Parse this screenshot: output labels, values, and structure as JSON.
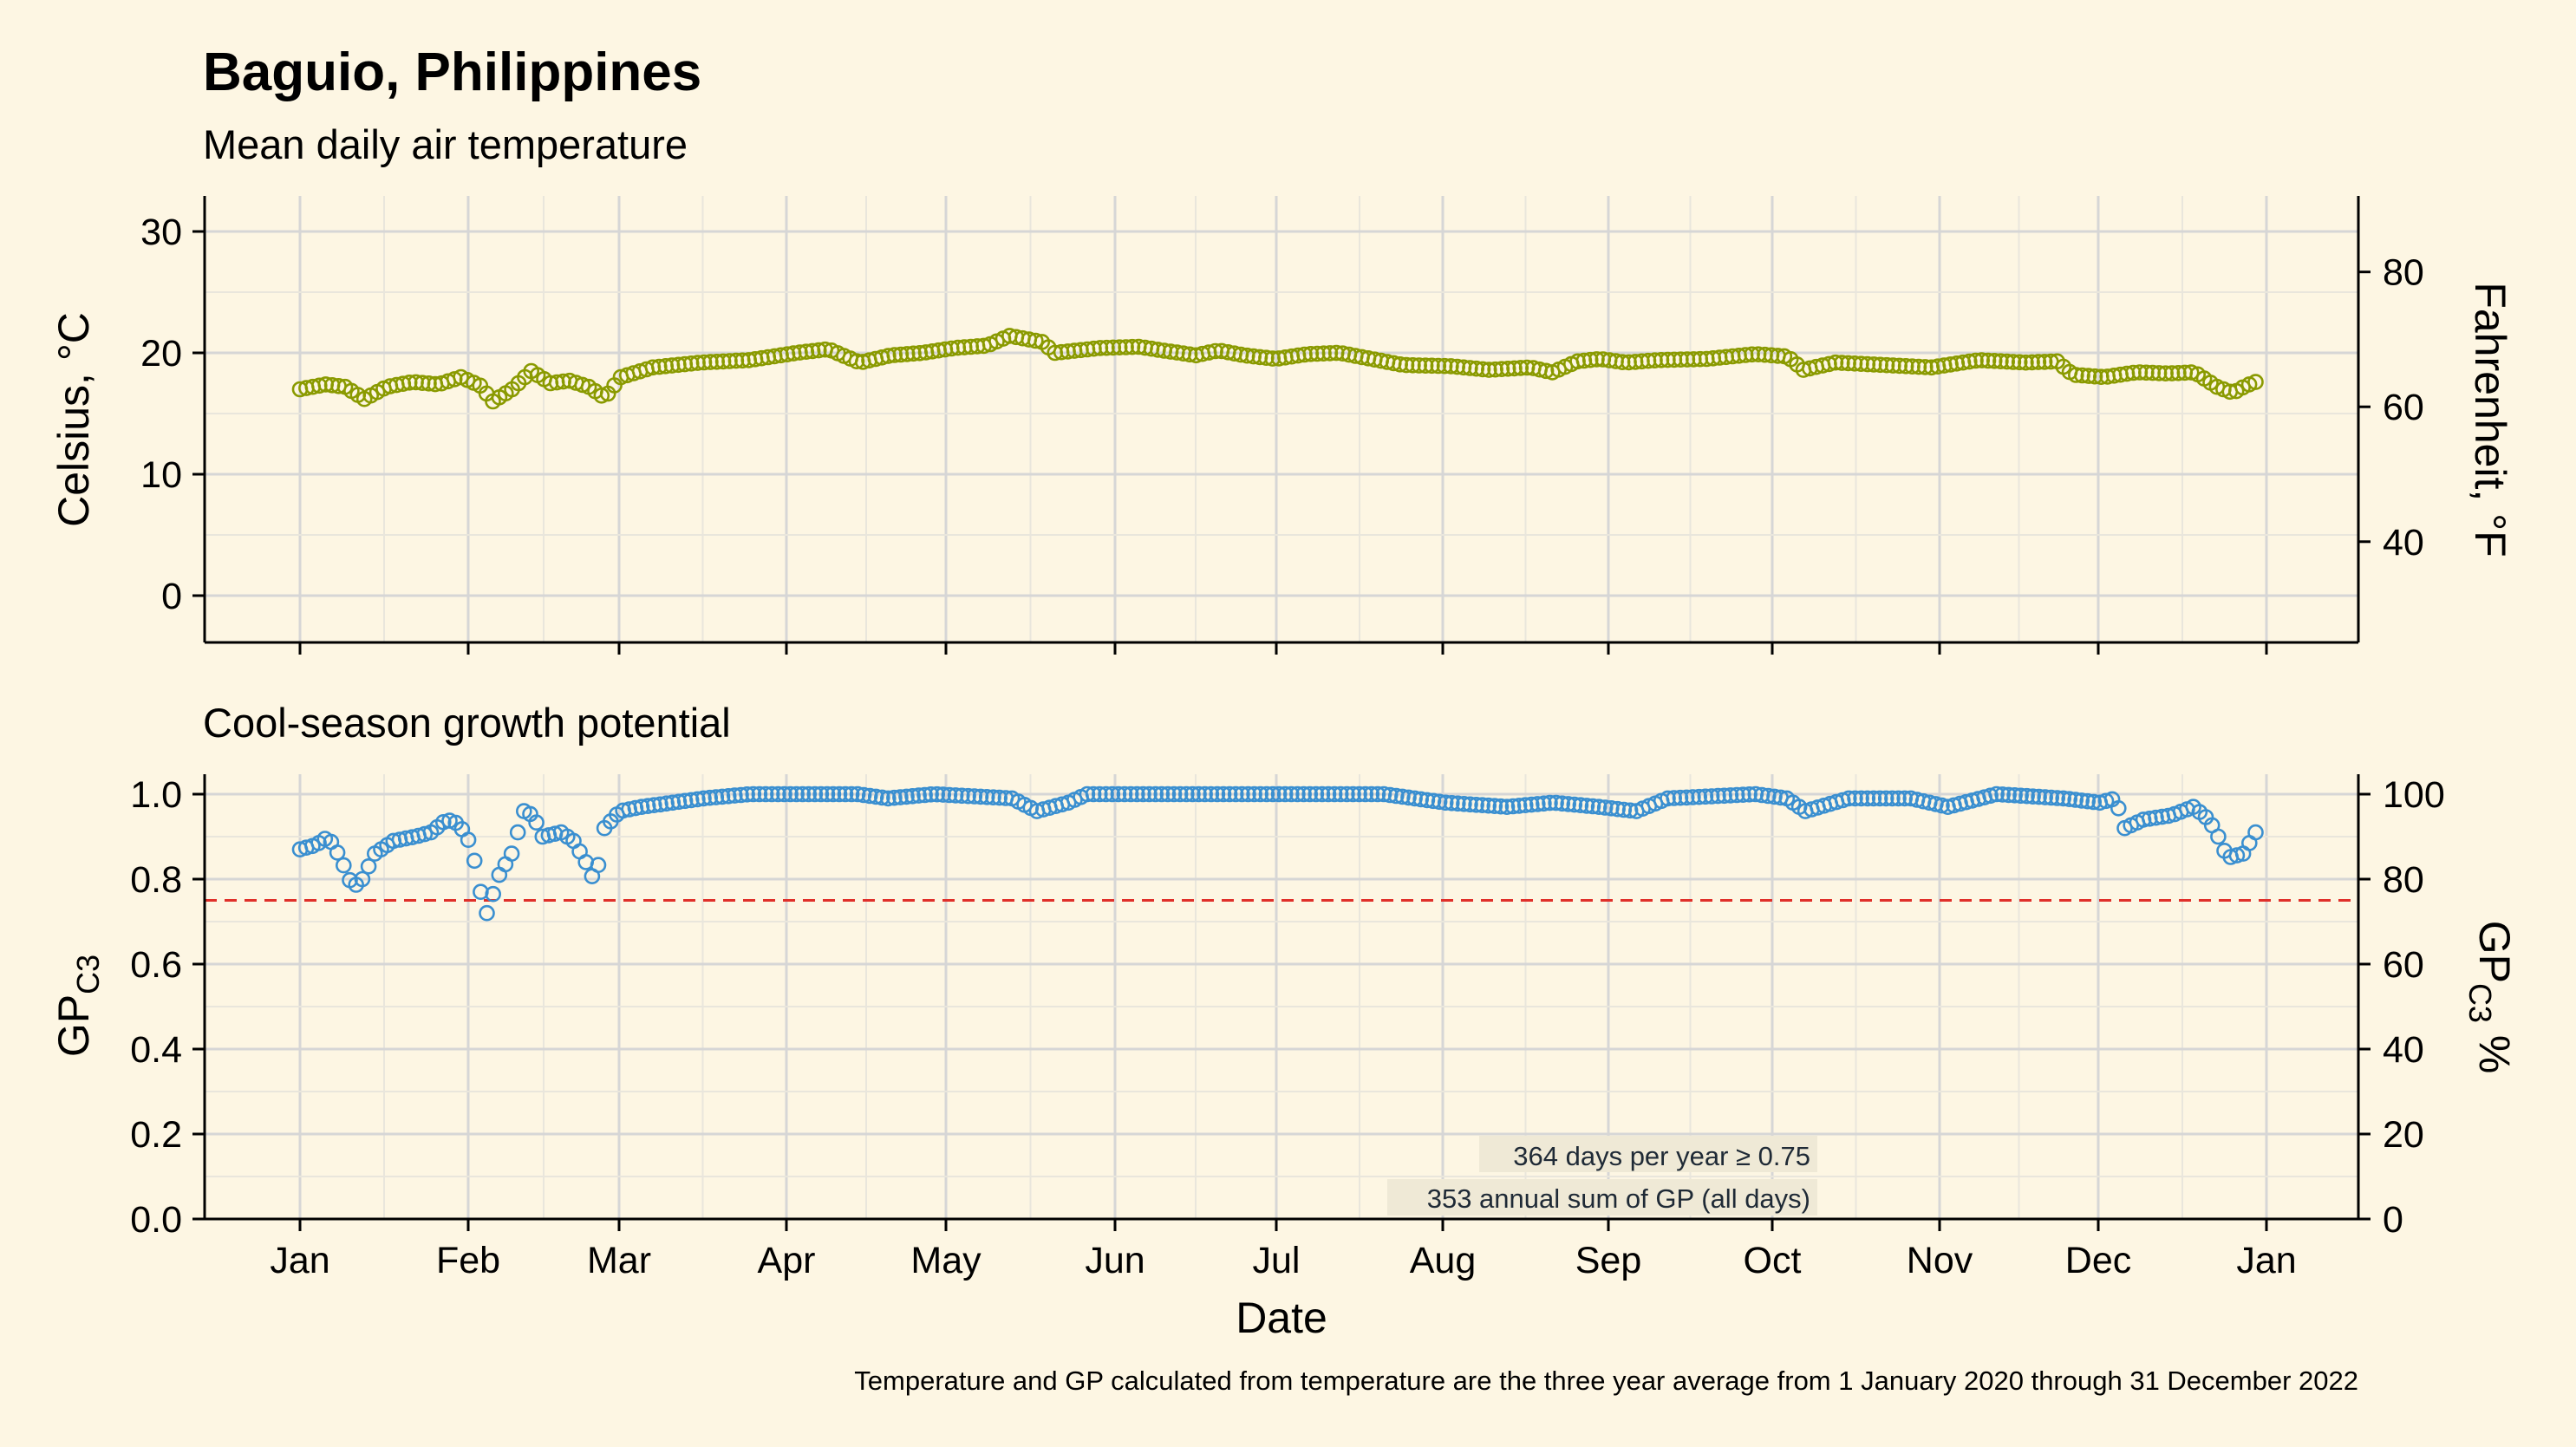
{
  "header": {
    "title": "Baguio, Philippines",
    "subtitle": "Mean daily air temperature"
  },
  "panel2": {
    "title": "Cool-season growth potential"
  },
  "footer": {
    "note": "Temperature and GP calculated from temperature are the three year average from 1 January 2020 through 31 December 2022"
  },
  "annotations": {
    "days_above": "364 days per year ≥ 0.75",
    "annual_sum": "353 annual sum of GP (all days)"
  },
  "colors": {
    "background": "#fdf6e3",
    "temperature": "#8a9a00",
    "gp": "#3a8fd0",
    "threshold": "#e0302a",
    "grid_major": "#d6d6d6",
    "grid_minor": "#e9e6dc"
  },
  "chart_data": [
    {
      "type": "scatter",
      "subtitle": "Mean daily air temperature",
      "xlabel": "",
      "ylabel": "Celsius, °C",
      "ylabel_right": "Fahrenheit, °F",
      "ylim": [
        -4,
        33
      ],
      "yticks": [
        0,
        10,
        20,
        30
      ],
      "yticks_right": [
        40,
        60,
        80
      ],
      "grid": true,
      "series": [
        {
          "x_start": "2020-01-01",
          "x_step_days": 1,
          "keyframes": [
            [
              0,
              17.0
            ],
            [
              8,
              17.4
            ],
            [
              14,
              17.2
            ],
            [
              20,
              16.2
            ],
            [
              27,
              17.2
            ],
            [
              35,
              17.6
            ],
            [
              43,
              17.4
            ],
            [
              50,
              18.0
            ],
            [
              56,
              17.3
            ],
            [
              60,
              16.0
            ],
            [
              66,
              17.0
            ],
            [
              72,
              18.5
            ],
            [
              78,
              17.5
            ],
            [
              84,
              17.7
            ],
            [
              90,
              17.2
            ],
            [
              95,
              16.3
            ],
            [
              100,
              18.0
            ],
            [
              110,
              18.8
            ],
            [
              125,
              19.2
            ],
            [
              140,
              19.4
            ],
            [
              155,
              20.0
            ],
            [
              165,
              20.3
            ],
            [
              175,
              19.2
            ],
            [
              185,
              19.8
            ],
            [
              195,
              20.0
            ],
            [
              205,
              20.4
            ],
            [
              215,
              20.6
            ],
            [
              222,
              21.4
            ],
            [
              232,
              20.9
            ],
            [
              236,
              20.0
            ],
            [
              250,
              20.4
            ],
            [
              262,
              20.5
            ],
            [
              272,
              20.1
            ],
            [
              280,
              19.8
            ],
            [
              287,
              20.2
            ],
            [
              295,
              19.8
            ],
            [
              305,
              19.5
            ],
            [
              315,
              19.9
            ],
            [
              325,
              20.0
            ],
            [
              335,
              19.5
            ],
            [
              345,
              19.0
            ],
            [
              360,
              18.9
            ],
            [
              372,
              18.6
            ],
            [
              385,
              18.8
            ],
            [
              392,
              18.4
            ],
            [
              400,
              19.3
            ],
            [
              407,
              19.5
            ],
            [
              415,
              19.2
            ],
            [
              425,
              19.4
            ],
            [
              440,
              19.5
            ],
            [
              455,
              19.9
            ],
            [
              465,
              19.7
            ],
            [
              470,
              18.6
            ],
            [
              480,
              19.2
            ],
            [
              495,
              19.0
            ],
            [
              510,
              18.8
            ],
            [
              525,
              19.4
            ],
            [
              540,
              19.2
            ],
            [
              550,
              19.3
            ],
            [
              555,
              18.2
            ],
            [
              565,
              18.0
            ],
            [
              575,
              18.4
            ],
            [
              585,
              18.3
            ],
            [
              593,
              18.4
            ],
            [
              600,
              17.2
            ],
            [
              605,
              16.7
            ],
            [
              609,
              17.3
            ],
            [
              612,
              17.6
            ]
          ]
        }
      ]
    },
    {
      "type": "scatter",
      "title": "Cool-season growth potential",
      "xlabel": "Date",
      "ylabel": "GP_C3",
      "ylabel_right": "GP_C3 %",
      "ylim": [
        0,
        1.05
      ],
      "yticks": [
        0.0,
        0.2,
        0.4,
        0.6,
        0.8,
        1.0
      ],
      "yticks_right": [
        0,
        20,
        40,
        60,
        80,
        100
      ],
      "threshold": 0.75,
      "x_range": [
        "Jan",
        "Jan"
      ],
      "x_ticks": [
        "Jan",
        "Feb",
        "Mar",
        "Apr",
        "May",
        "Jun",
        "Jul",
        "Aug",
        "Sep",
        "Oct",
        "Nov",
        "Dec",
        "Jan"
      ],
      "grid": true,
      "series": [
        {
          "x_start": "2020-01-01",
          "x_step_days": 1,
          "keyframes": [
            [
              0,
              0.87
            ],
            [
              5,
              0.88
            ],
            [
              9,
              0.9
            ],
            [
              13,
              0.85
            ],
            [
              17,
              0.78
            ],
            [
              20,
              0.8
            ],
            [
              24,
              0.86
            ],
            [
              30,
              0.89
            ],
            [
              37,
              0.9
            ],
            [
              42,
              0.91
            ],
            [
              47,
              0.94
            ],
            [
              51,
              0.93
            ],
            [
              55,
              0.88
            ],
            [
              58,
              0.77
            ],
            [
              60,
              0.72
            ],
            [
              64,
              0.81
            ],
            [
              68,
              0.86
            ],
            [
              72,
              0.96
            ],
            [
              75,
              0.95
            ],
            [
              78,
              0.9
            ],
            [
              84,
              0.91
            ],
            [
              88,
              0.89
            ],
            [
              92,
              0.84
            ],
            [
              95,
              0.79
            ],
            [
              98,
              0.92
            ],
            [
              103,
              0.96
            ],
            [
              110,
              0.97
            ],
            [
              120,
              0.98
            ],
            [
              130,
              0.99
            ],
            [
              145,
              1.0
            ],
            [
              180,
              1.0
            ],
            [
              190,
              0.99
            ],
            [
              205,
              1.0
            ],
            [
              230,
              0.99
            ],
            [
              238,
              0.96
            ],
            [
              248,
              0.98
            ],
            [
              254,
              1.0
            ],
            [
              300,
              1.0
            ],
            [
              350,
              1.0
            ],
            [
              370,
              0.98
            ],
            [
              390,
              0.97
            ],
            [
              405,
              0.98
            ],
            [
              420,
              0.97
            ],
            [
              432,
              0.96
            ],
            [
              442,
              0.99
            ],
            [
              470,
              1.0
            ],
            [
              480,
              0.99
            ],
            [
              486,
              0.96
            ],
            [
              500,
              0.99
            ],
            [
              520,
              0.99
            ],
            [
              532,
              0.97
            ],
            [
              548,
              1.0
            ],
            [
              570,
              0.99
            ],
            [
              582,
              0.98
            ],
            [
              587,
              0.99
            ],
            [
              590,
              0.92
            ],
            [
              596,
              0.94
            ],
            [
              605,
              0.95
            ],
            [
              612,
              0.97
            ],
            [
              617,
              0.94
            ],
            [
              620,
              0.9
            ],
            [
              623,
              0.85
            ],
            [
              628,
              0.86
            ],
            [
              632,
              0.91
            ]
          ]
        }
      ]
    }
  ]
}
